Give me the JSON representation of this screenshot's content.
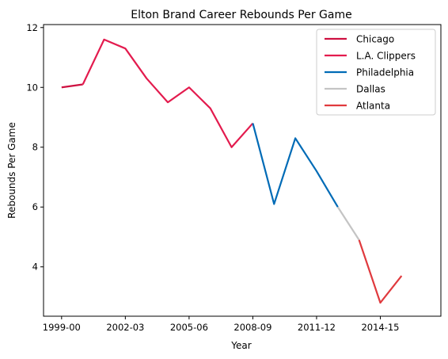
{
  "chart_data": {
    "type": "line",
    "title": "Elton Brand Career Rebounds Per Game",
    "xlabel": "Year",
    "ylabel": "Rebounds Per Game",
    "x_ticks": [
      "1999-00",
      "2002-03",
      "2005-06",
      "2008-09",
      "2011-12",
      "2014-15"
    ],
    "y_ticks": [
      4,
      6,
      8,
      10,
      12
    ],
    "xlim": [
      -0.85,
      17.85
    ],
    "ylim": [
      2.35,
      12.1
    ],
    "grid": false,
    "legend": "top-right",
    "series": [
      {
        "name": "Chicago",
        "color": "#ce1141",
        "x": [
          0,
          1
        ],
        "y": [
          10.0,
          10.1
        ]
      },
      {
        "name": "L.A. Clippers",
        "color": "#e31b4e",
        "x": [
          1,
          2,
          3,
          4,
          5,
          6,
          7,
          8,
          9
        ],
        "y": [
          10.1,
          11.6,
          11.3,
          10.3,
          9.5,
          10.0,
          9.3,
          8.0,
          8.8
        ]
      },
      {
        "name": "Philadelphia",
        "color": "#006bb6",
        "x": [
          9,
          10,
          11,
          12,
          13
        ],
        "y": [
          8.8,
          6.1,
          8.3,
          7.2,
          6.0
        ]
      },
      {
        "name": "Dallas",
        "color": "#c4c4c4",
        "x": [
          13,
          14
        ],
        "y": [
          6.0,
          4.9
        ]
      },
      {
        "name": "Atlanta",
        "color": "#e03a3e",
        "x": [
          14,
          15,
          16
        ],
        "y": [
          4.9,
          2.8,
          3.7
        ]
      }
    ]
  }
}
